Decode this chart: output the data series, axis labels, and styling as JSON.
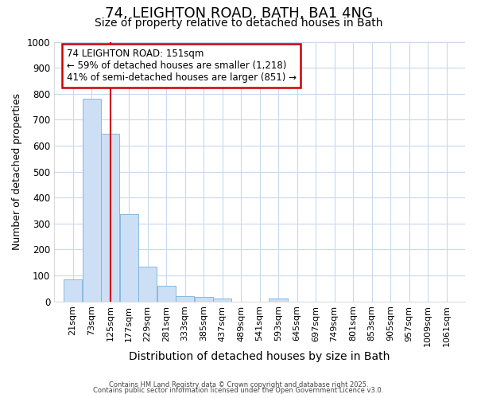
{
  "title1": "74, LEIGHTON ROAD, BATH, BA1 4NG",
  "title2": "Size of property relative to detached houses in Bath",
  "xlabel": "Distribution of detached houses by size in Bath",
  "ylabel": "Number of detached properties",
  "bar_edges": [
    21,
    73,
    125,
    177,
    229,
    281,
    333,
    385,
    437,
    489,
    541,
    593,
    645,
    697,
    749,
    801,
    853,
    905,
    957,
    1009,
    1061
  ],
  "bar_heights": [
    85,
    780,
    645,
    335,
    135,
    60,
    22,
    18,
    10,
    0,
    0,
    10,
    0,
    0,
    0,
    0,
    0,
    0,
    0,
    0,
    0
  ],
  "bar_color": "#ccdff5",
  "bar_edgecolor": "#7ab0d9",
  "property_line_x": 151,
  "property_line_color": "#cc0000",
  "ylim": [
    0,
    1000
  ],
  "yticks": [
    0,
    100,
    200,
    300,
    400,
    500,
    600,
    700,
    800,
    900,
    1000
  ],
  "annotation_text": "74 LEIGHTON ROAD: 151sqm\n← 59% of detached houses are smaller (1,218)\n41% of semi-detached houses are larger (851) →",
  "annotation_box_facecolor": "#ffffff",
  "annotation_box_edgecolor": "#cc0000",
  "bg_color": "#ffffff",
  "plot_bg_color": "#ffffff",
  "grid_color": "#c8d8ee",
  "title1_fontsize": 13,
  "title2_fontsize": 10,
  "xlabel_fontsize": 10,
  "ylabel_fontsize": 9,
  "footnote1": "Contains HM Land Registry data © Crown copyright and database right 2025.",
  "footnote2": "Contains public sector information licensed under the Open Government Licence v3.0."
}
